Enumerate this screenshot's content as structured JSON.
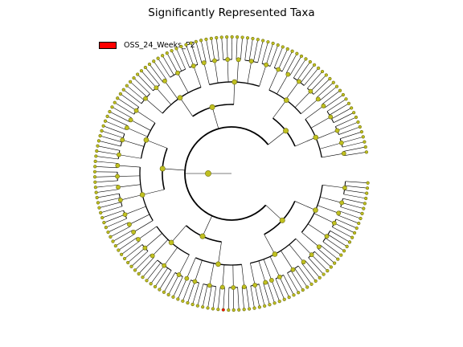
{
  "title": "Significantly Represented Taxa",
  "legend": [
    {
      "label": "OSS_24_Weeks_P2",
      "color": "#ff0000"
    }
  ],
  "colors": {
    "node_fill": "#c0c020",
    "node_stroke": "#6b6b10",
    "significant_node": "#ff0000",
    "branch": "#000000"
  },
  "tree": {
    "levels": 6,
    "clades": [
      {
        "genera": [
          4,
          3,
          2,
          3,
          4,
          2
        ]
      },
      {
        "genera": [
          3,
          2,
          4,
          3,
          1,
          2,
          3
        ]
      },
      {
        "genera": [
          2,
          3,
          2,
          4,
          3,
          1
        ]
      },
      {
        "genera": [
          3,
          5,
          2,
          3,
          2
        ]
      },
      {
        "genera": [
          2,
          2,
          3,
          4,
          2,
          3,
          2
        ]
      },
      {
        "genera": [
          3,
          4,
          2,
          2,
          3
        ]
      },
      {
        "genera": [
          4,
          3,
          2,
          5,
          3
        ]
      },
      {
        "genera": [
          2,
          3,
          3,
          2,
          4,
          3
        ]
      },
      {
        "genera": [
          3,
          2,
          4,
          3,
          2
        ]
      },
      {
        "genera": [
          2,
          4,
          3,
          3,
          2
        ]
      }
    ],
    "highlighted_leaf_index": 41
  }
}
